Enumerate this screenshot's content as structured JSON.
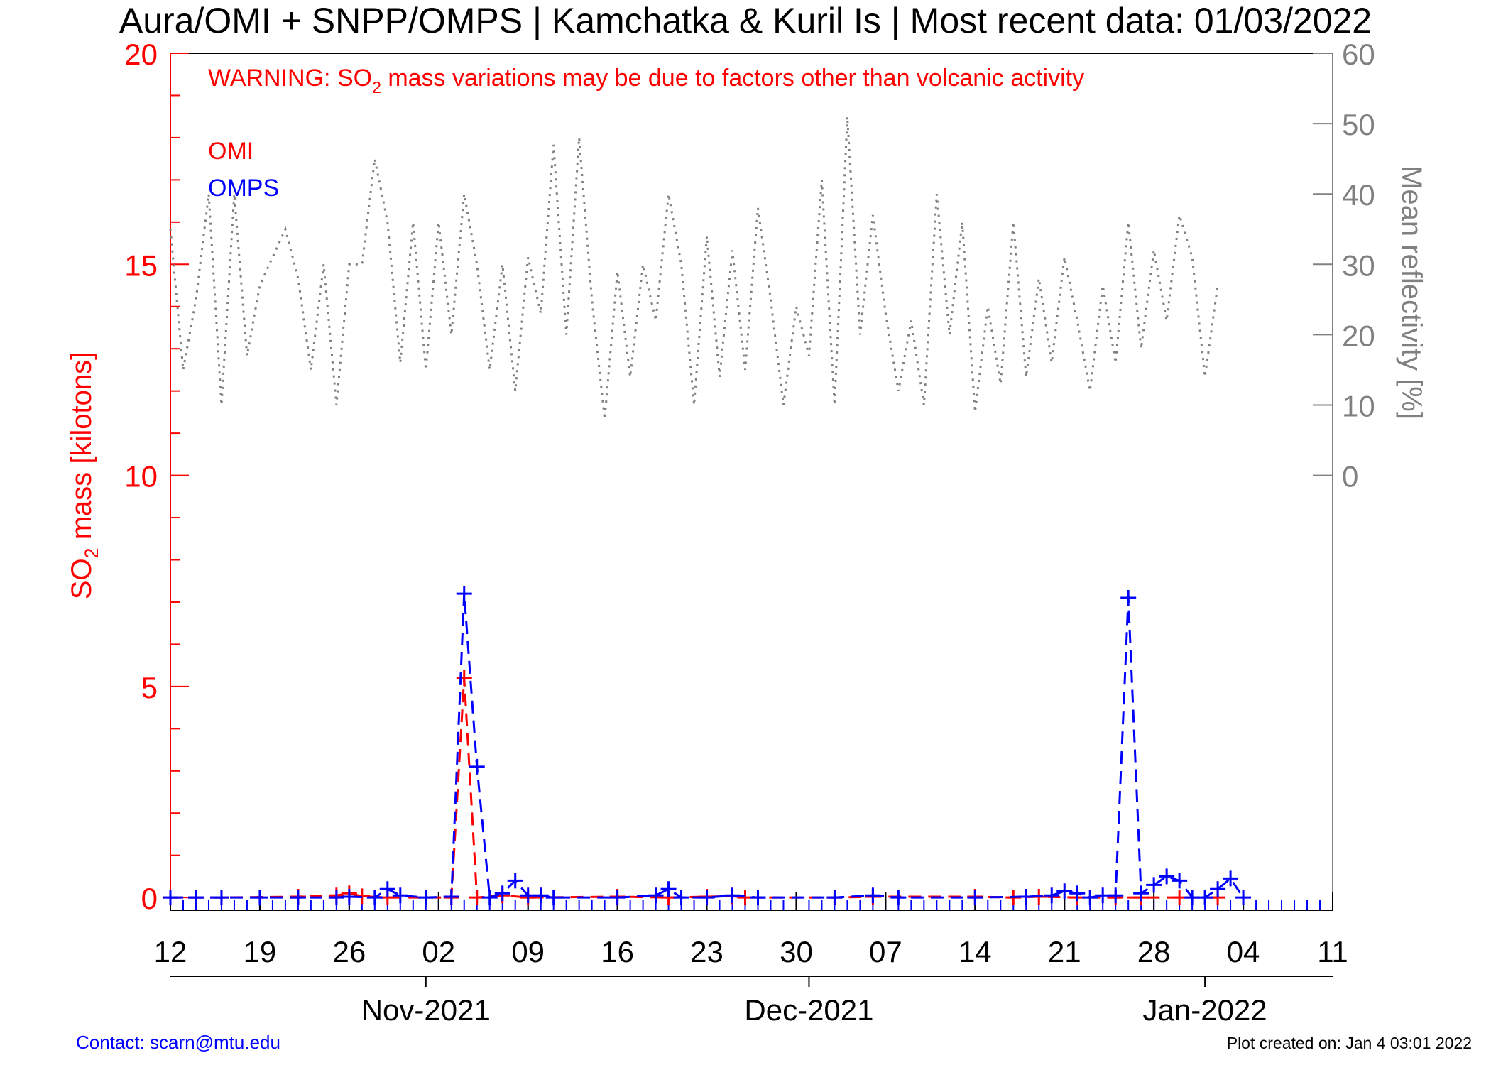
{
  "title": "Aura/OMI + SNPP/OMPS | Kamchatka & Kuril Is | Most recent data: 01/03/2022",
  "warning": {
    "prefix": "WARNING: SO",
    "subscript": "2",
    "suffix": " mass variations may be due to factors other than volcanic activity"
  },
  "footer": {
    "contact": "Contact: scarn@mtu.edu",
    "created": "Plot created on: Jan  4 03:01 2022"
  },
  "colors": {
    "omi": "#ff0000",
    "omps": "#0000ff",
    "reflectivity": "#808080",
    "axis": "#000000"
  },
  "chart_data": {
    "type": "line",
    "x_range": [
      "2021-10-12",
      "2022-01-11"
    ],
    "x_ticks": [
      {
        "date": "2021-10-12",
        "label": "12"
      },
      {
        "date": "2021-10-19",
        "label": "19"
      },
      {
        "date": "2021-10-26",
        "label": "26"
      },
      {
        "date": "2021-11-02",
        "label": "02"
      },
      {
        "date": "2021-11-09",
        "label": "09"
      },
      {
        "date": "2021-11-16",
        "label": "16"
      },
      {
        "date": "2021-11-23",
        "label": "23"
      },
      {
        "date": "2021-11-30",
        "label": "30"
      },
      {
        "date": "2021-12-07",
        "label": "07"
      },
      {
        "date": "2021-12-14",
        "label": "14"
      },
      {
        "date": "2021-12-21",
        "label": "21"
      },
      {
        "date": "2021-12-28",
        "label": "28"
      },
      {
        "date": "2022-01-04",
        "label": "04"
      },
      {
        "date": "2022-01-11",
        "label": "11"
      }
    ],
    "months": [
      {
        "date": "2021-11-01",
        "label": "Nov-2021"
      },
      {
        "date": "2021-12-01",
        "label": "Dec-2021"
      },
      {
        "date": "2022-01-01",
        "label": "Jan-2022"
      }
    ],
    "y_left": {
      "label_prefix": "SO",
      "label_subscript": "2",
      "label_suffix": " mass [kilotons]",
      "range": [
        -0.3,
        20
      ],
      "ticks": [
        "0",
        "5",
        "10",
        "15",
        "20"
      ]
    },
    "y_right": {
      "label": "Mean reflectivity [%]",
      "range": [
        0,
        60
      ],
      "ticks": [
        "0",
        "10",
        "20",
        "30",
        "40",
        "50",
        "60"
      ]
    },
    "series": [
      {
        "name": "OMI",
        "values": [
          [
            "2021-10-12",
            0
          ],
          [
            "2021-10-14",
            0
          ],
          [
            "2021-10-16",
            0
          ],
          [
            "2021-10-22",
            0.02
          ],
          [
            "2021-10-25",
            0.05
          ],
          [
            "2021-10-26",
            0.1
          ],
          [
            "2021-10-27",
            0.03
          ],
          [
            "2021-10-29",
            0
          ],
          [
            "2021-11-03",
            0
          ],
          [
            "2021-11-04",
            5.2
          ],
          [
            "2021-11-05",
            0
          ],
          [
            "2021-11-07",
            0.05
          ],
          [
            "2021-11-09",
            0
          ],
          [
            "2021-11-16",
            0.02
          ],
          [
            "2021-11-20",
            0
          ],
          [
            "2021-11-23",
            0.02
          ],
          [
            "2021-11-25",
            0.03
          ],
          [
            "2021-11-26",
            0
          ],
          [
            "2021-12-03",
            0
          ],
          [
            "2021-12-06",
            0.02
          ],
          [
            "2021-12-14",
            0.02
          ],
          [
            "2021-12-17",
            0
          ],
          [
            "2021-12-19",
            0.02
          ],
          [
            "2021-12-22",
            0
          ],
          [
            "2021-12-25",
            0
          ],
          [
            "2021-12-27",
            0
          ],
          [
            "2021-12-30",
            0
          ],
          [
            "2022-01-02",
            0
          ]
        ]
      },
      {
        "name": "OMPS",
        "values": [
          [
            "2021-10-12",
            0
          ],
          [
            "2021-10-14",
            0
          ],
          [
            "2021-10-16",
            0
          ],
          [
            "2021-10-19",
            0
          ],
          [
            "2021-10-22",
            0
          ],
          [
            "2021-10-25",
            0
          ],
          [
            "2021-10-26",
            0.02
          ],
          [
            "2021-10-28",
            0
          ],
          [
            "2021-10-29",
            0.2
          ],
          [
            "2021-10-30",
            0.05
          ],
          [
            "2021-11-01",
            0
          ],
          [
            "2021-11-03",
            0.02
          ],
          [
            "2021-11-04",
            7.2
          ],
          [
            "2021-11-05",
            3.1
          ],
          [
            "2021-11-06",
            0
          ],
          [
            "2021-11-07",
            0.1
          ],
          [
            "2021-11-08",
            0.4
          ],
          [
            "2021-11-09",
            0.05
          ],
          [
            "2021-11-10",
            0.05
          ],
          [
            "2021-11-11",
            0
          ],
          [
            "2021-11-16",
            0
          ],
          [
            "2021-11-19",
            0.05
          ],
          [
            "2021-11-20",
            0.2
          ],
          [
            "2021-11-21",
            0
          ],
          [
            "2021-11-23",
            0
          ],
          [
            "2021-11-25",
            0.05
          ],
          [
            "2021-11-27",
            0
          ],
          [
            "2021-12-03",
            0
          ],
          [
            "2021-12-06",
            0.05
          ],
          [
            "2021-12-08",
            0
          ],
          [
            "2021-12-14",
            0
          ],
          [
            "2021-12-18",
            0.02
          ],
          [
            "2021-12-20",
            0.05
          ],
          [
            "2021-12-21",
            0.15
          ],
          [
            "2021-12-22",
            0.1
          ],
          [
            "2021-12-23",
            0
          ],
          [
            "2021-12-24",
            0.05
          ],
          [
            "2021-12-25",
            0.05
          ],
          [
            "2021-12-26",
            7.1
          ],
          [
            "2021-12-27",
            0.1
          ],
          [
            "2021-12-28",
            0.3
          ],
          [
            "2021-12-29",
            0.5
          ],
          [
            "2021-12-30",
            0.4
          ],
          [
            "2021-12-31",
            0
          ],
          [
            "2022-01-01",
            0
          ],
          [
            "2022-01-02",
            0.2
          ],
          [
            "2022-01-03",
            0.45
          ],
          [
            "2022-01-04",
            0
          ]
        ]
      },
      {
        "name": "Mean reflectivity",
        "axis": "right",
        "values": [
          [
            "2021-10-12",
            35
          ],
          [
            "2021-10-13",
            15
          ],
          [
            "2021-10-14",
            25
          ],
          [
            "2021-10-15",
            40
          ],
          [
            "2021-10-16",
            10
          ],
          [
            "2021-10-17",
            40
          ],
          [
            "2021-10-18",
            17
          ],
          [
            "2021-10-19",
            27
          ],
          [
            "2021-10-20",
            31
          ],
          [
            "2021-10-21",
            35
          ],
          [
            "2021-10-22",
            28
          ],
          [
            "2021-10-23",
            15
          ],
          [
            "2021-10-24",
            30
          ],
          [
            "2021-10-25",
            10
          ],
          [
            "2021-10-26",
            30
          ],
          [
            "2021-10-27",
            30
          ],
          [
            "2021-10-28",
            45
          ],
          [
            "2021-10-29",
            36
          ],
          [
            "2021-10-30",
            16
          ],
          [
            "2021-10-31",
            36
          ],
          [
            "2021-11-01",
            15
          ],
          [
            "2021-11-02",
            36
          ],
          [
            "2021-11-03",
            20
          ],
          [
            "2021-11-04",
            40
          ],
          [
            "2021-11-05",
            30
          ],
          [
            "2021-11-06",
            15
          ],
          [
            "2021-11-07",
            30
          ],
          [
            "2021-11-08",
            12
          ],
          [
            "2021-11-09",
            31
          ],
          [
            "2021-11-10",
            23
          ],
          [
            "2021-11-11",
            47
          ],
          [
            "2021-11-12",
            20
          ],
          [
            "2021-11-13",
            48
          ],
          [
            "2021-11-14",
            25
          ],
          [
            "2021-11-15",
            8
          ],
          [
            "2021-11-16",
            29
          ],
          [
            "2021-11-17",
            14
          ],
          [
            "2021-11-18",
            30
          ],
          [
            "2021-11-19",
            22
          ],
          [
            "2021-11-20",
            40
          ],
          [
            "2021-11-21",
            30
          ],
          [
            "2021-11-22",
            10
          ],
          [
            "2021-11-23",
            34
          ],
          [
            "2021-11-24",
            14
          ],
          [
            "2021-11-25",
            32
          ],
          [
            "2021-11-26",
            15
          ],
          [
            "2021-11-27",
            38
          ],
          [
            "2021-11-28",
            25
          ],
          [
            "2021-11-29",
            10
          ],
          [
            "2021-11-30",
            24
          ],
          [
            "2021-12-01",
            17
          ],
          [
            "2021-12-02",
            42
          ],
          [
            "2021-12-03",
            10
          ],
          [
            "2021-12-04",
            51
          ],
          [
            "2021-12-05",
            20
          ],
          [
            "2021-12-06",
            37
          ],
          [
            "2021-12-07",
            23
          ],
          [
            "2021-12-08",
            12
          ],
          [
            "2021-12-09",
            22
          ],
          [
            "2021-12-10",
            10
          ],
          [
            "2021-12-11",
            40
          ],
          [
            "2021-12-12",
            20
          ],
          [
            "2021-12-13",
            36
          ],
          [
            "2021-12-14",
            9
          ],
          [
            "2021-12-15",
            24
          ],
          [
            "2021-12-16",
            13
          ],
          [
            "2021-12-17",
            36
          ],
          [
            "2021-12-18",
            14
          ],
          [
            "2021-12-19",
            28
          ],
          [
            "2021-12-20",
            16
          ],
          [
            "2021-12-21",
            31
          ],
          [
            "2021-12-22",
            22
          ],
          [
            "2021-12-23",
            12
          ],
          [
            "2021-12-24",
            27
          ],
          [
            "2021-12-25",
            16
          ],
          [
            "2021-12-26",
            36
          ],
          [
            "2021-12-27",
            18
          ],
          [
            "2021-12-28",
            32
          ],
          [
            "2021-12-29",
            22
          ],
          [
            "2021-12-30",
            37
          ],
          [
            "2021-12-31",
            31
          ],
          [
            "2022-01-01",
            14
          ],
          [
            "2022-01-02",
            27
          ]
        ]
      }
    ],
    "legend": [
      "OMI",
      "OMPS"
    ],
    "legend_position": "top-left",
    "grid": false
  }
}
